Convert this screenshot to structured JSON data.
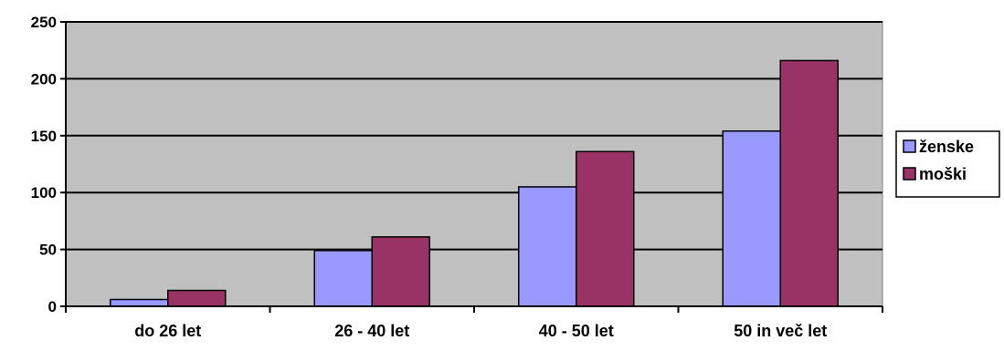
{
  "chart_data": {
    "type": "bar",
    "title": "",
    "xlabel": "",
    "ylabel": "",
    "categories": [
      "do 26 let",
      "26 - 40 let",
      "40 - 50 let",
      "50 in več let"
    ],
    "series": [
      {
        "name": "ženske",
        "values": [
          6,
          49,
          105,
          154
        ],
        "color": "#9999ff"
      },
      {
        "name": "moški",
        "values": [
          14,
          61,
          136,
          216
        ],
        "color": "#993366"
      }
    ],
    "ylim": [
      0,
      250
    ],
    "yticks": [
      0,
      50,
      100,
      150,
      200,
      250
    ],
    "grid": true,
    "plot_background": "#c0c0c0",
    "legend_position": "right"
  }
}
